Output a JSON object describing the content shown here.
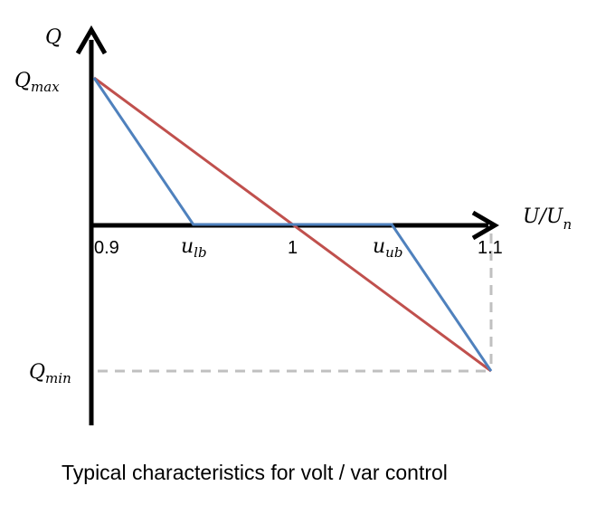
{
  "chart_data": {
    "type": "line",
    "title": "",
    "caption": "Typical characteristics for volt / var control",
    "x_axis": {
      "label_main": "U/U",
      "label_sub": "n",
      "ticks": [
        {
          "value": 0.9,
          "label": "0.9"
        },
        {
          "value": 1.0,
          "label": "1"
        },
        {
          "value": 1.1,
          "label": "1.1"
        }
      ],
      "named_points": [
        {
          "name": "u_lb",
          "main": "u",
          "sub": "lb",
          "value": 0.95
        },
        {
          "name": "u_ub",
          "main": "u",
          "sub": "ub",
          "value": 1.05
        }
      ],
      "xlim": [
        0.9,
        1.1
      ]
    },
    "y_axis": {
      "label": "Q",
      "ticks": [
        {
          "name": "Q_max",
          "main": "Q",
          "sub": "max",
          "value": 1
        },
        {
          "name": "Q_min",
          "main": "Q",
          "sub": "min",
          "value": -1
        }
      ],
      "ylim": [
        -1,
        1
      ]
    },
    "series": [
      {
        "color": "#c0504d",
        "points": [
          [
            0.9,
            1
          ],
          [
            1.1,
            -1
          ]
        ]
      },
      {
        "color": "#4f81bd",
        "points": [
          [
            0.9,
            1
          ],
          [
            0.95,
            0
          ],
          [
            1.05,
            0
          ],
          [
            1.1,
            -1
          ]
        ]
      }
    ],
    "reference_lines_color": "#c0c0c0"
  }
}
